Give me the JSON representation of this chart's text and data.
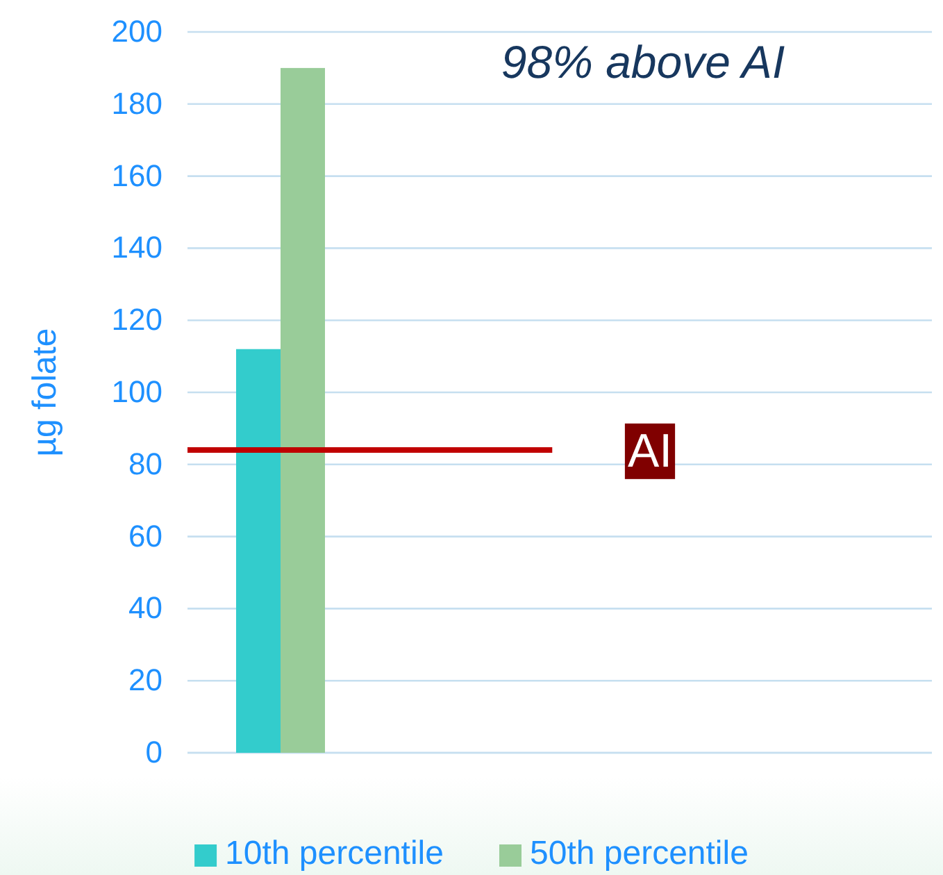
{
  "chart_data": {
    "type": "bar",
    "ylabel": "µg folate",
    "categories": [
      null,
      null,
      null,
      null
    ],
    "series": [
      {
        "name": "10th percentile",
        "color": "#33cccc",
        "values": [
          112,
          null,
          null,
          null
        ]
      },
      {
        "name": "50th percentile",
        "color": "#99cc99",
        "values": [
          190,
          null,
          null,
          null
        ]
      }
    ],
    "ylim": [
      0,
      200
    ],
    "yticks": [
      0,
      20,
      40,
      60,
      80,
      100,
      120,
      140,
      160,
      180,
      200
    ],
    "grid": "y",
    "legend": "bottom",
    "ref_lines": [
      {
        "axis": "y",
        "value": 84,
        "label": "AI",
        "color": "#c00000"
      }
    ],
    "annotations": [
      "98% above AI"
    ]
  }
}
